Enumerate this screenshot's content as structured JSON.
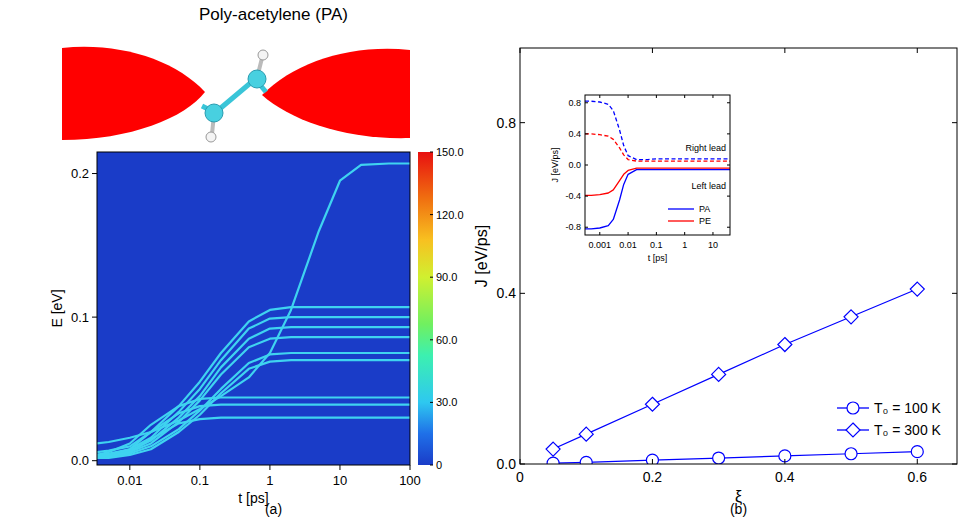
{
  "chart_data": [
    {
      "type": "line",
      "title": "Poly-acetylene (PA)",
      "panel_label": "(a)",
      "x_label": "t [ps]",
      "y_label": "E [eV]",
      "log": "x",
      "xlim": [
        0.0034,
        100
      ],
      "xticks": [
        0.01,
        0.1,
        1,
        10,
        100
      ],
      "ylim": [
        -0.003,
        0.215
      ],
      "yticks": [
        {
          "value": 0,
          "label": "0.0"
        },
        {
          "value": 0.1,
          "label": "0.1"
        },
        {
          "value": 0.2,
          "label": "0.2"
        }
      ],
      "x": [
        0.0034,
        0.005,
        0.01,
        0.02,
        0.05,
        0.1,
        0.2,
        0.5,
        1,
        2,
        5,
        10,
        20,
        50,
        100
      ],
      "series": [
        {
          "color": "#3fd3f0",
          "values": [
            0.012,
            0.013,
            0.016,
            0.02,
            0.028,
            0.036,
            0.045,
            0.058,
            0.075,
            0.105,
            0.16,
            0.195,
            0.206,
            0.207,
            0.207
          ]
        },
        {
          "color": "#3fd3f0",
          "values": [
            0.006,
            0.007,
            0.01,
            0.02,
            0.038,
            0.055,
            0.075,
            0.097,
            0.105,
            0.107,
            0.107,
            0.107,
            0.107,
            0.107,
            0.107
          ]
        },
        {
          "color": "#3fd3f0",
          "values": [
            0.004,
            0.005,
            0.008,
            0.016,
            0.034,
            0.05,
            0.07,
            0.092,
            0.099,
            0.1,
            0.1,
            0.1,
            0.1,
            0.1,
            0.1
          ]
        },
        {
          "color": "#3fd3f0",
          "values": [
            0.003,
            0.004,
            0.007,
            0.014,
            0.03,
            0.045,
            0.065,
            0.085,
            0.092,
            0.093,
            0.093,
            0.093,
            0.093,
            0.093,
            0.093
          ]
        },
        {
          "color": "#3fd3f0",
          "values": [
            0.003,
            0.004,
            0.006,
            0.012,
            0.027,
            0.042,
            0.06,
            0.079,
            0.085,
            0.086,
            0.086,
            0.086,
            0.086,
            0.086,
            0.086
          ]
        },
        {
          "color": "#3fd3f0",
          "values": [
            0.002,
            0.003,
            0.005,
            0.01,
            0.022,
            0.035,
            0.05,
            0.068,
            0.074,
            0.075,
            0.075,
            0.075,
            0.075,
            0.075,
            0.075
          ]
        },
        {
          "color": "#3fd3f0",
          "values": [
            0.002,
            0.002,
            0.004,
            0.008,
            0.02,
            0.032,
            0.047,
            0.064,
            0.069,
            0.07,
            0.07,
            0.07,
            0.07,
            0.07,
            0.07
          ]
        },
        {
          "color": "#3fd3f0",
          "values": [
            0.004,
            0.006,
            0.012,
            0.025,
            0.038,
            0.043,
            0.044,
            0.044,
            0.044,
            0.044,
            0.044,
            0.044,
            0.044,
            0.044,
            0.044
          ]
        },
        {
          "color": "#3fd3f0",
          "values": [
            0.003,
            0.004,
            0.008,
            0.02,
            0.033,
            0.038,
            0.039,
            0.039,
            0.039,
            0.039,
            0.039,
            0.039,
            0.039,
            0.039,
            0.039
          ]
        },
        {
          "color": "#3fd3f0",
          "values": [
            0.002,
            0.003,
            0.006,
            0.015,
            0.026,
            0.029,
            0.03,
            0.03,
            0.03,
            0.03,
            0.03,
            0.03,
            0.03,
            0.03,
            0.03
          ]
        }
      ],
      "colorbar": {
        "range": [
          0,
          150
        ],
        "ticks": [
          0,
          {
            "value": 30,
            "label": "30.0"
          },
          {
            "value": 60,
            "label": "60.0"
          },
          {
            "value": 90,
            "label": "90.0"
          },
          {
            "value": 120,
            "label": "120.0"
          },
          {
            "value": 150,
            "label": "150.0"
          }
        ]
      }
    },
    {
      "type": "line",
      "panel_label": "(b)",
      "x_label": "ξ",
      "y_label": "J [eV/ps]",
      "xlim": [
        0,
        0.66
      ],
      "xticks": [
        0,
        0.2,
        0.4,
        0.6
      ],
      "ylim": [
        0,
        0.975
      ],
      "yticks": [
        {
          "value": 0,
          "label": "0.0"
        },
        {
          "value": 0.4,
          "label": "0.4"
        },
        {
          "value": 0.8,
          "label": "0.8"
        }
      ],
      "x": [
        0.05,
        0.1,
        0.2,
        0.3,
        0.4,
        0.5,
        0.6
      ],
      "legend": "lower right",
      "series": [
        {
          "name": "T₀ = 100 K",
          "color": "#0000ff",
          "marker": "circle",
          "line_style": "solid",
          "values": [
            0.002,
            0.004,
            0.009,
            0.014,
            0.019,
            0.024,
            0.029
          ]
        },
        {
          "name": "T₀ = 300 K",
          "color": "#0000ff",
          "marker": "diamond",
          "line_style": "solid",
          "values": [
            0.035,
            0.07,
            0.14,
            0.21,
            0.28,
            0.345,
            0.41
          ]
        }
      ]
    },
    {
      "type": "line",
      "x_label": "t [ps]",
      "y_label": "J [eV/ps]",
      "log": "x",
      "xlim": [
        0.0003,
        40
      ],
      "xticks": [
        0.001,
        0.01,
        0.1,
        1,
        10
      ],
      "ylim": [
        -0.9,
        0.9
      ],
      "yticks": [
        {
          "value": -0.8,
          "label": "-0.8"
        },
        {
          "value": -0.4,
          "label": "-0.4"
        },
        {
          "value": 0,
          "label": "0.0"
        },
        {
          "value": 0.4,
          "label": "0.4"
        },
        {
          "value": 0.8,
          "label": "0.8"
        }
      ],
      "x": [
        0.0003,
        0.0005,
        0.001,
        0.002,
        0.003,
        0.005,
        0.007,
        0.01,
        0.02,
        0.05,
        0.1,
        0.2,
        0.5,
        1,
        5,
        10,
        40
      ],
      "legend": "lower right",
      "annotations": [
        "Right lead",
        "Left lead"
      ],
      "series": [
        {
          "name": "PA",
          "color": "#0000ff",
          "line_style": "dashed",
          "values": [
            0.82,
            0.82,
            0.81,
            0.78,
            0.7,
            0.45,
            0.25,
            0.12,
            0.07,
            0.07,
            0.08,
            0.08,
            0.08,
            0.08,
            0.08,
            0.08,
            0.08
          ]
        },
        {
          "name": "PE",
          "color": "#ff0000",
          "line_style": "dashed",
          "values": [
            0.4,
            0.4,
            0.39,
            0.37,
            0.33,
            0.22,
            0.13,
            0.07,
            0.05,
            0.05,
            0.05,
            0.05,
            0.05,
            0.05,
            0.05,
            0.05,
            0.05
          ]
        },
        {
          "name": "PA",
          "color": "#0000ff",
          "line_style": "solid",
          "values": [
            -0.82,
            -0.82,
            -0.81,
            -0.78,
            -0.7,
            -0.45,
            -0.25,
            -0.12,
            -0.06,
            -0.06,
            -0.06,
            -0.06,
            -0.06,
            -0.06,
            -0.06,
            -0.06,
            -0.06
          ]
        },
        {
          "name": "PE",
          "color": "#ff0000",
          "line_style": "solid",
          "values": [
            -0.39,
            -0.39,
            -0.38,
            -0.36,
            -0.32,
            -0.2,
            -0.12,
            -0.07,
            -0.04,
            -0.04,
            -0.04,
            -0.04,
            -0.04,
            -0.04,
            -0.04,
            -0.04,
            -0.04
          ]
        }
      ]
    }
  ]
}
